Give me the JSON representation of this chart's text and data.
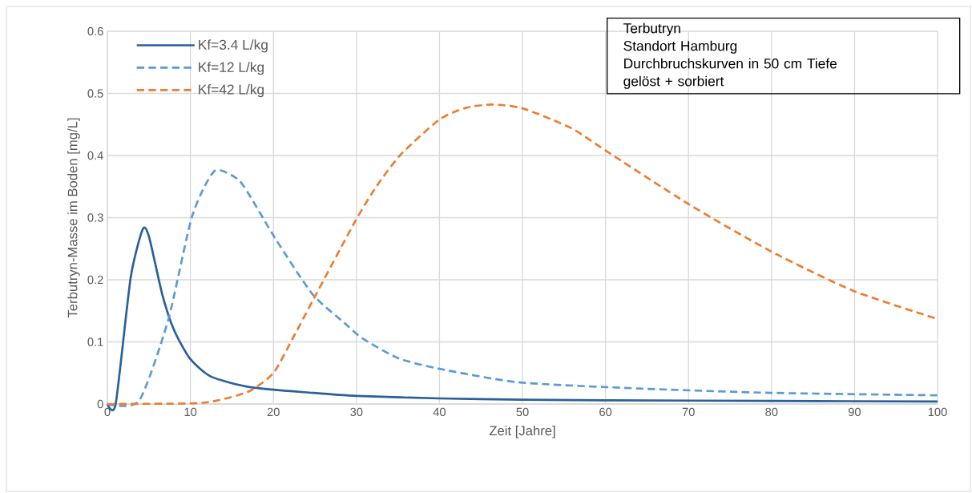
{
  "chart_data": {
    "type": "line",
    "xlabel": "Zeit [Jahre]",
    "ylabel": "Terbutryn-Masse im Boden [mg/L]",
    "annotations": [
      "Terbutryn",
      "Standort Hamburg",
      "Durchbruchskurven in 50 cm Tiefe",
      "gelöst + sorbiert"
    ],
    "xlim": [
      0,
      100
    ],
    "ylim": [
      0,
      0.6
    ],
    "xticks": [
      0,
      10,
      20,
      30,
      40,
      50,
      60,
      70,
      80,
      90,
      100
    ],
    "yticks": [
      0,
      0.1,
      0.2,
      0.3,
      0.4,
      0.5,
      0.6
    ],
    "grid": true,
    "legend": "top left",
    "marker": "none",
    "series": [
      {
        "name": "Kf=3.4 L/kg",
        "color": "#2a6099",
        "line_style": "solid",
        "x": [
          0,
          1,
          2.8,
          4.25,
          5,
          6.6,
          8,
          9.9,
          12.5,
          17.3,
          24.7,
          30,
          40,
          50,
          60,
          80,
          100
        ],
        "values": [
          0,
          0,
          0.203,
          0.281,
          0.27,
          0.177,
          0.12,
          0.074,
          0.044,
          0.027,
          0.018,
          0.013,
          0.009,
          0.007,
          0.006,
          0.005,
          0.004
        ]
      },
      {
        "name": "Kf=12 L/kg",
        "color": "#5b9bd5",
        "line_style": "dashed",
        "x": [
          0,
          3.8,
          7.3,
          10.2,
          12.9,
          15.7,
          17.3,
          20.2,
          24.7,
          28.6,
          30.7,
          35,
          39.9,
          49.5,
          64,
          80,
          100
        ],
        "values": [
          0,
          0.005,
          0.134,
          0.302,
          0.375,
          0.362,
          0.332,
          0.267,
          0.177,
          0.13,
          0.106,
          0.074,
          0.057,
          0.035,
          0.025,
          0.018,
          0.014
        ]
      },
      {
        "name": "Kf=42 L/kg",
        "color": "#ed7d31",
        "line_style": "dashed",
        "x": [
          0,
          10,
          13,
          17,
          20,
          22.5,
          25,
          29.8,
          32.4,
          35.3,
          39.9,
          43,
          46.2,
          50,
          55.9,
          59.9,
          70.1,
          79.9,
          89.9,
          100
        ],
        "values": [
          0,
          0.001,
          0.005,
          0.02,
          0.05,
          0.11,
          0.173,
          0.293,
          0.35,
          0.401,
          0.457,
          0.476,
          0.482,
          0.476,
          0.444,
          0.409,
          0.321,
          0.246,
          0.182,
          0.137
        ]
      }
    ]
  }
}
